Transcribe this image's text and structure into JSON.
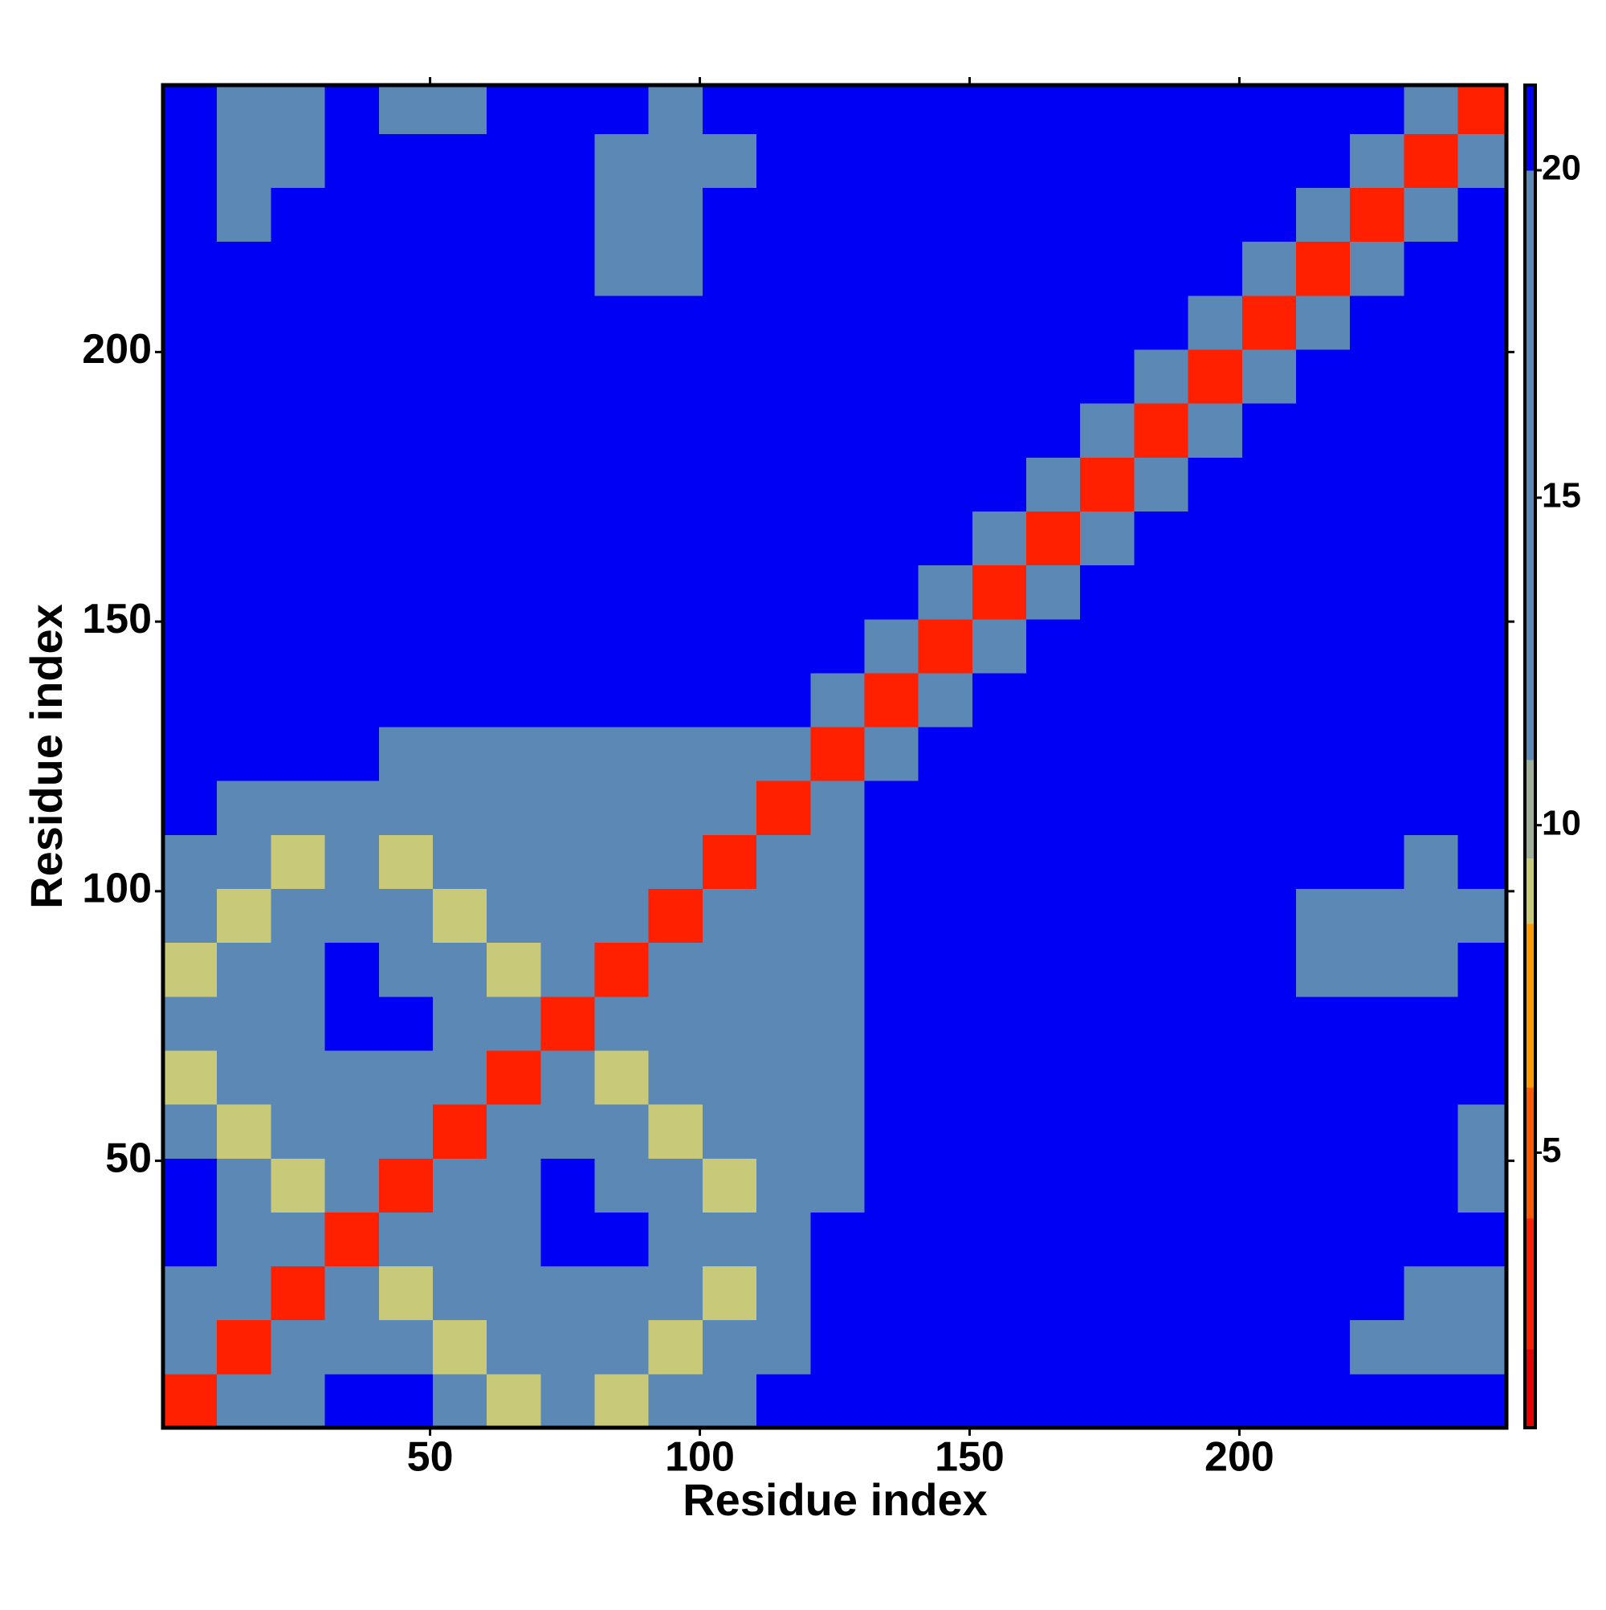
{
  "chart_data": {
    "type": "heatmap",
    "xlabel": "Residue index",
    "ylabel": "Residue index",
    "xlim": [
      0.5,
      249.5
    ],
    "ylim": [
      0.5,
      249.5
    ],
    "xticks": [
      50,
      100,
      150,
      200
    ],
    "yticks": [
      50,
      100,
      150,
      200
    ],
    "bins": [
      0.5,
      10.5,
      20.5,
      30.5,
      40.5,
      50.5,
      60.5,
      70.5,
      80.5,
      90.5,
      100.5,
      110.5,
      120.5,
      130.5,
      140.5,
      150.5,
      160.5,
      170.5,
      180.5,
      190.5,
      200.5,
      210.5,
      220.5,
      230.5,
      240.5,
      249.5
    ],
    "z": [
      [
        3,
        12,
        17,
        21,
        21,
        15,
        9,
        15,
        9,
        15,
        15,
        21,
        21,
        21,
        21,
        21,
        21,
        21,
        21,
        21,
        21,
        21,
        21,
        21,
        21
      ],
      [
        12,
        3,
        12,
        19,
        19,
        9,
        15,
        15,
        15,
        9,
        15,
        19,
        21,
        21,
        21,
        21,
        21,
        21,
        21,
        21,
        21,
        21,
        20,
        19,
        19
      ],
      [
        17,
        12,
        3,
        12,
        9,
        15,
        15,
        18,
        17,
        15,
        9,
        18,
        21,
        21,
        21,
        21,
        21,
        21,
        21,
        21,
        21,
        21,
        21,
        20,
        19
      ],
      [
        21,
        19,
        12,
        3,
        12,
        15,
        19,
        21,
        21,
        15,
        15,
        16,
        21,
        21,
        21,
        21,
        21,
        21,
        21,
        21,
        21,
        21,
        21,
        21,
        21
      ],
      [
        21,
        19,
        9,
        12,
        3,
        12,
        15,
        21,
        20,
        15,
        9,
        16,
        19,
        21,
        21,
        21,
        21,
        21,
        21,
        21,
        21,
        21,
        21,
        21,
        20
      ],
      [
        15,
        9,
        15,
        15,
        12,
        3,
        12,
        15,
        19,
        9,
        15,
        16,
        19,
        21,
        21,
        21,
        21,
        21,
        21,
        21,
        21,
        21,
        21,
        21,
        20
      ],
      [
        9,
        15,
        15,
        19,
        15,
        12,
        3,
        12,
        9,
        15,
        15,
        16,
        19,
        21,
        21,
        21,
        21,
        21,
        21,
        21,
        21,
        21,
        21,
        21,
        21
      ],
      [
        15,
        15,
        18,
        21,
        21,
        15,
        12,
        3,
        12,
        15,
        15,
        16,
        19,
        21,
        21,
        21,
        21,
        21,
        21,
        21,
        21,
        21,
        21,
        21,
        21
      ],
      [
        9,
        15,
        17,
        21,
        20,
        19,
        9,
        12,
        3,
        12,
        15,
        16,
        17,
        21,
        21,
        21,
        21,
        21,
        21,
        21,
        21,
        20,
        19,
        19,
        21
      ],
      [
        15,
        9,
        15,
        15,
        15,
        9,
        15,
        15,
        12,
        3,
        12,
        15,
        17,
        21,
        21,
        21,
        21,
        21,
        21,
        21,
        21,
        19,
        18,
        18,
        19
      ],
      [
        15,
        15,
        9,
        15,
        9,
        15,
        15,
        15,
        15,
        12,
        3,
        12,
        15,
        21,
        21,
        21,
        21,
        21,
        21,
        21,
        21,
        21,
        21,
        20,
        21
      ],
      [
        21,
        19,
        18,
        16,
        16,
        16,
        16,
        16,
        16,
        15,
        12,
        3,
        12,
        21,
        21,
        21,
        21,
        21,
        21,
        21,
        21,
        21,
        21,
        21,
        21
      ],
      [
        21,
        21,
        21,
        21,
        19,
        19,
        19,
        19,
        17,
        17,
        15,
        12,
        3,
        14,
        21,
        21,
        21,
        21,
        21,
        21,
        21,
        21,
        21,
        21,
        21
      ],
      [
        21,
        21,
        21,
        21,
        21,
        21,
        21,
        21,
        21,
        21,
        21,
        21,
        14,
        3,
        14,
        21,
        21,
        21,
        21,
        21,
        21,
        21,
        21,
        21,
        21
      ],
      [
        21,
        21,
        21,
        21,
        21,
        21,
        21,
        21,
        21,
        21,
        21,
        21,
        21,
        14,
        3,
        14,
        21,
        21,
        21,
        21,
        21,
        21,
        21,
        21,
        21
      ],
      [
        21,
        21,
        21,
        21,
        21,
        21,
        21,
        21,
        21,
        21,
        21,
        21,
        21,
        21,
        14,
        3,
        14,
        21,
        21,
        21,
        21,
        21,
        21,
        21,
        21
      ],
      [
        21,
        21,
        21,
        21,
        21,
        21,
        21,
        21,
        21,
        21,
        21,
        21,
        21,
        21,
        21,
        14,
        3,
        14,
        21,
        21,
        21,
        21,
        21,
        21,
        21
      ],
      [
        21,
        21,
        21,
        21,
        21,
        21,
        21,
        21,
        21,
        21,
        21,
        21,
        21,
        21,
        21,
        21,
        14,
        3,
        14,
        21,
        21,
        21,
        21,
        21,
        21
      ],
      [
        21,
        21,
        21,
        21,
        21,
        21,
        21,
        21,
        21,
        21,
        21,
        21,
        21,
        21,
        21,
        21,
        21,
        14,
        3,
        14,
        21,
        21,
        21,
        21,
        21
      ],
      [
        21,
        21,
        21,
        21,
        21,
        21,
        21,
        21,
        21,
        21,
        21,
        21,
        21,
        21,
        21,
        21,
        21,
        21,
        14,
        3,
        14,
        21,
        21,
        21,
        21
      ],
      [
        21,
        21,
        21,
        21,
        21,
        21,
        21,
        21,
        21,
        21,
        21,
        21,
        21,
        21,
        21,
        21,
        21,
        21,
        21,
        14,
        3,
        14,
        21,
        21,
        21
      ],
      [
        21,
        21,
        21,
        21,
        21,
        21,
        21,
        21,
        20,
        19,
        21,
        21,
        21,
        21,
        21,
        21,
        21,
        21,
        21,
        21,
        14,
        3,
        14,
        21,
        21
      ],
      [
        21,
        20,
        21,
        21,
        21,
        21,
        21,
        21,
        19,
        18,
        21,
        21,
        21,
        21,
        21,
        21,
        21,
        21,
        21,
        21,
        21,
        14,
        3,
        14,
        21
      ],
      [
        21,
        19,
        20,
        21,
        21,
        21,
        21,
        21,
        19,
        18,
        20,
        21,
        21,
        21,
        21,
        21,
        21,
        21,
        21,
        21,
        21,
        21,
        14,
        3,
        14
      ],
      [
        21,
        19,
        19,
        21,
        20,
        20,
        21,
        21,
        21,
        19,
        21,
        21,
        21,
        21,
        21,
        21,
        21,
        21,
        21,
        21,
        21,
        21,
        21,
        14,
        3
      ]
    ],
    "zlim": [
      0.8,
      21.3
    ],
    "zticks": [
      5,
      10,
      15,
      20
    ],
    "colorscale": [
      {
        "max": 2,
        "color": "#e60000"
      },
      {
        "max": 4,
        "color": "#ff2000"
      },
      {
        "max": 6,
        "color": "#ff5a00"
      },
      {
        "max": 8.5,
        "color": "#ff9a00"
      },
      {
        "max": 9.5,
        "color": "#c9c97a"
      },
      {
        "max": 11,
        "color": "#9fb09a"
      },
      {
        "max": 20,
        "color": "#5b88b5"
      },
      {
        "max": 21.3,
        "color": "#0000f5"
      }
    ]
  }
}
